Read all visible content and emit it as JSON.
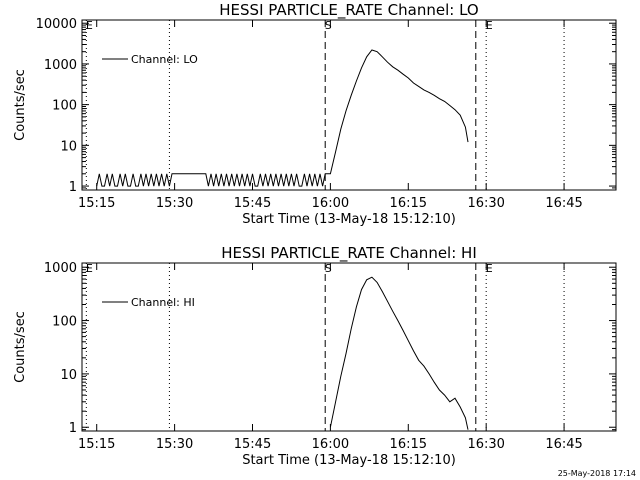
{
  "footer": {
    "timestamp": "25-May-2018 17:14"
  },
  "chart_data": [
    {
      "type": "line",
      "title": "HESSI PARTICLE_RATE Channel: LO",
      "xlabel": "Start Time (13-May-18 15:12:10)",
      "ylabel": "Counts/sec",
      "yscale": "log",
      "grid": false,
      "legend_position": "top-left",
      "xlim": [
        "15:12:10",
        "16:55"
      ],
      "ylim": [
        0.8,
        12000
      ],
      "x_ticks": [
        "15:15",
        "15:30",
        "15:45",
        "16:00",
        "16:15",
        "16:30",
        "16:45"
      ],
      "y_ticks": [
        {
          "value": 1,
          "label": "1"
        },
        {
          "value": 10,
          "label": "10"
        },
        {
          "value": 100,
          "label": "100"
        },
        {
          "value": 1000,
          "label": "1000"
        },
        {
          "value": 10000,
          "label": "10000"
        }
      ],
      "markers": [
        {
          "time": "15:13",
          "style": "dotted",
          "label": "E"
        },
        {
          "time": "15:29",
          "style": "dotted",
          "label": ""
        },
        {
          "time": "15:59",
          "style": "dashed",
          "label": "S"
        },
        {
          "time": "16:28",
          "style": "dashed",
          "label": ""
        },
        {
          "time": "16:30",
          "style": "dotted",
          "label": "E"
        },
        {
          "time": "16:45",
          "style": "dotted",
          "label": ""
        }
      ],
      "series": [
        {
          "name": "Channel: LO",
          "x": [
            "15:15",
            "15:15:30",
            "15:16",
            "15:16:30",
            "15:17",
            "15:17:30",
            "15:18",
            "15:18:30",
            "15:19",
            "15:19:30",
            "15:20",
            "15:20:30",
            "15:21",
            "15:21:30",
            "15:22",
            "15:22:30",
            "15:23",
            "15:23:30",
            "15:24",
            "15:24:30",
            "15:25",
            "15:25:30",
            "15:26",
            "15:26:30",
            "15:27",
            "15:27:30",
            "15:28",
            "15:28:30",
            "15:29",
            "15:29:30",
            "15:30",
            "15:31",
            "15:32",
            "15:33",
            "15:34",
            "15:35",
            "15:36",
            "15:36:30",
            "15:37",
            "15:37:30",
            "15:38",
            "15:38:30",
            "15:39",
            "15:39:30",
            "15:40",
            "15:40:30",
            "15:41",
            "15:41:30",
            "15:42",
            "15:42:30",
            "15:43",
            "15:43:30",
            "15:44",
            "15:44:30",
            "15:45",
            "15:45:30",
            "15:46",
            "15:46:30",
            "15:47",
            "15:47:30",
            "15:48",
            "15:48:30",
            "15:49",
            "15:49:30",
            "15:50",
            "15:50:30",
            "15:51",
            "15:51:30",
            "15:52",
            "15:52:30",
            "15:53",
            "15:53:30",
            "15:54",
            "15:54:30",
            "15:55",
            "15:55:30",
            "15:56",
            "15:56:30",
            "15:57",
            "15:57:30",
            "15:58",
            "15:58:30",
            "15:59",
            "16:00",
            "16:01",
            "16:02",
            "16:03",
            "16:04",
            "16:05",
            "16:06",
            "16:07",
            "16:08",
            "16:09",
            "16:10",
            "16:11",
            "16:12",
            "16:13",
            "16:14",
            "16:15",
            "16:16",
            "16:17",
            "16:18",
            "16:19",
            "16:20",
            "16:21",
            "16:22",
            "16:23",
            "16:24",
            "16:25",
            "16:26",
            "16:26:30"
          ],
          "y": [
            1,
            2,
            1,
            1,
            2,
            1,
            2,
            1,
            1,
            2,
            1,
            2,
            1,
            1,
            2,
            1,
            1,
            2,
            1,
            2,
            1,
            2,
            1,
            2,
            1,
            2,
            1,
            2,
            1,
            2,
            2,
            2,
            2,
            2,
            2,
            2,
            2,
            1,
            2,
            1,
            2,
            1,
            2,
            1,
            2,
            1,
            2,
            1,
            2,
            1,
            2,
            1,
            2,
            1,
            2,
            1,
            1,
            2,
            1,
            2,
            1,
            2,
            1,
            2,
            1,
            2,
            1,
            2,
            1,
            2,
            1,
            2,
            1,
            1,
            2,
            1,
            2,
            1,
            2,
            1,
            2,
            1,
            2,
            2,
            7,
            25,
            70,
            170,
            380,
            800,
            1500,
            2200,
            2000,
            1500,
            1100,
            850,
            700,
            560,
            450,
            340,
            280,
            230,
            200,
            170,
            140,
            120,
            95,
            75,
            55,
            28,
            12
          ]
        }
      ]
    },
    {
      "type": "line",
      "title": "HESSI PARTICLE_RATE Channel: HI",
      "xlabel": "Start Time (13-May-18 15:12:10)",
      "ylabel": "Counts/sec",
      "yscale": "log",
      "grid": false,
      "legend_position": "top-left",
      "xlim": [
        "15:12:10",
        "16:55"
      ],
      "ylim": [
        0.85,
        1200
      ],
      "x_ticks": [
        "15:15",
        "15:30",
        "15:45",
        "16:00",
        "16:15",
        "16:30",
        "16:45"
      ],
      "y_ticks": [
        {
          "value": 1,
          "label": "1"
        },
        {
          "value": 10,
          "label": "10"
        },
        {
          "value": 100,
          "label": "100"
        },
        {
          "value": 1000,
          "label": "1000"
        }
      ],
      "markers": [
        {
          "time": "15:13",
          "style": "dotted",
          "label": "E"
        },
        {
          "time": "15:29",
          "style": "dotted",
          "label": ""
        },
        {
          "time": "15:59",
          "style": "dashed",
          "label": "S"
        },
        {
          "time": "16:28",
          "style": "dashed",
          "label": ""
        },
        {
          "time": "16:30",
          "style": "dotted",
          "label": "E"
        },
        {
          "time": "16:45",
          "style": "dotted",
          "label": ""
        }
      ],
      "series": [
        {
          "name": "Channel: HI",
          "x": [
            "16:00",
            "16:01",
            "16:02",
            "16:03",
            "16:04",
            "16:05",
            "16:06",
            "16:07",
            "16:08",
            "16:09",
            "16:10",
            "16:11",
            "16:12",
            "16:13",
            "16:14",
            "16:15",
            "16:16",
            "16:17",
            "16:18",
            "16:19",
            "16:20",
            "16:21",
            "16:22",
            "16:23",
            "16:24",
            "16:25",
            "16:26",
            "16:26:30"
          ],
          "y": [
            1,
            3,
            9,
            24,
            70,
            180,
            380,
            580,
            650,
            520,
            350,
            230,
            150,
            100,
            65,
            42,
            27,
            18,
            14,
            10,
            7,
            5,
            4,
            3,
            3.5,
            2.4,
            1.5,
            0.9
          ]
        }
      ]
    }
  ]
}
